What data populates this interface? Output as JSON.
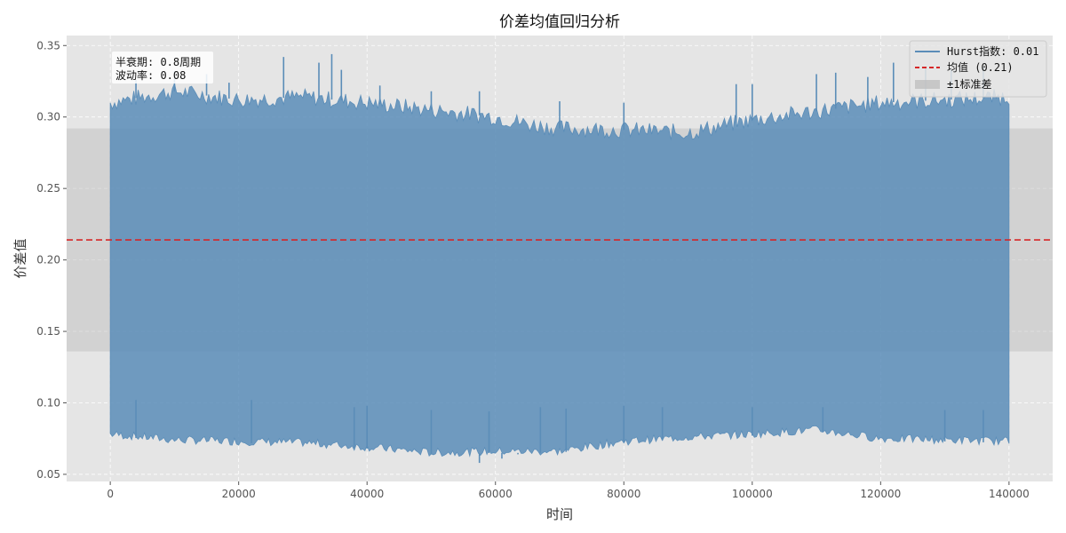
{
  "chart_data": {
    "type": "line",
    "title": "价差均值回归分析",
    "xlabel": "时间",
    "ylabel": "价差值",
    "xlim": [
      -6800,
      146800
    ],
    "ylim": [
      0.045,
      0.357
    ],
    "x_ticks": [
      0,
      20000,
      40000,
      60000,
      80000,
      100000,
      120000,
      140000
    ],
    "y_ticks": [
      0.05,
      0.1,
      0.15,
      0.2,
      0.25,
      0.3,
      0.35
    ],
    "y_tick_labels": [
      "0.05",
      "0.10",
      "0.15",
      "0.20",
      "0.25",
      "0.30",
      "0.35"
    ],
    "grid": true,
    "legend_position": "top-right",
    "colors": {
      "series": "#5b8db8",
      "mean": "#d62728",
      "band": "#bbbbbb",
      "background": "#e5e5e5"
    },
    "mean": 0.214,
    "std_band": [
      0.136,
      0.292
    ],
    "series": [
      {
        "name": "Hurst指数: 0.01",
        "x_range": [
          0,
          140000
        ],
        "upper_envelope": {
          "x": [
            0,
            10000,
            20000,
            30000,
            40000,
            50000,
            60000,
            65000,
            70000,
            80000,
            90000,
            100000,
            110000,
            120000,
            130000,
            140000
          ],
          "y": [
            0.31,
            0.318,
            0.312,
            0.314,
            0.31,
            0.305,
            0.3,
            0.295,
            0.292,
            0.291,
            0.289,
            0.298,
            0.304,
            0.31,
            0.312,
            0.314
          ]
        },
        "lower_envelope": {
          "x": [
            0,
            10000,
            20000,
            30000,
            40000,
            50000,
            60000,
            70000,
            80000,
            90000,
            100000,
            110000,
            120000,
            130000,
            140000
          ],
          "y": [
            0.077,
            0.073,
            0.072,
            0.071,
            0.068,
            0.064,
            0.065,
            0.065,
            0.072,
            0.075,
            0.077,
            0.08,
            0.074,
            0.073,
            0.072
          ]
        },
        "spikes_up": [
          {
            "x": 4000,
            "y": 0.326
          },
          {
            "x": 10000,
            "y": 0.332
          },
          {
            "x": 15000,
            "y": 0.33
          },
          {
            "x": 18500,
            "y": 0.324
          },
          {
            "x": 27000,
            "y": 0.342
          },
          {
            "x": 32500,
            "y": 0.338
          },
          {
            "x": 34500,
            "y": 0.344
          },
          {
            "x": 36000,
            "y": 0.333
          },
          {
            "x": 42000,
            "y": 0.322
          },
          {
            "x": 50000,
            "y": 0.318
          },
          {
            "x": 57500,
            "y": 0.318
          },
          {
            "x": 70000,
            "y": 0.311
          },
          {
            "x": 80000,
            "y": 0.31
          },
          {
            "x": 97500,
            "y": 0.323
          },
          {
            "x": 100000,
            "y": 0.323
          },
          {
            "x": 110000,
            "y": 0.33
          },
          {
            "x": 113000,
            "y": 0.331
          },
          {
            "x": 118000,
            "y": 0.328
          },
          {
            "x": 122000,
            "y": 0.338
          },
          {
            "x": 127000,
            "y": 0.334
          },
          {
            "x": 131000,
            "y": 0.333
          },
          {
            "x": 136000,
            "y": 0.335
          }
        ],
        "spikes_down": [
          {
            "x": 4000,
            "y": 0.102
          },
          {
            "x": 22000,
            "y": 0.102
          },
          {
            "x": 38000,
            "y": 0.097
          },
          {
            "x": 40000,
            "y": 0.098
          },
          {
            "x": 50000,
            "y": 0.095
          },
          {
            "x": 57500,
            "y": 0.058
          },
          {
            "x": 59000,
            "y": 0.094
          },
          {
            "x": 61000,
            "y": 0.061
          },
          {
            "x": 63500,
            "y": 0.064
          },
          {
            "x": 67000,
            "y": 0.097
          },
          {
            "x": 71000,
            "y": 0.096
          },
          {
            "x": 80000,
            "y": 0.098
          },
          {
            "x": 86000,
            "y": 0.097
          },
          {
            "x": 100000,
            "y": 0.097
          },
          {
            "x": 111000,
            "y": 0.097
          },
          {
            "x": 130000,
            "y": 0.095
          },
          {
            "x": 136000,
            "y": 0.095
          }
        ]
      }
    ],
    "legend": [
      {
        "label": "Hurst指数: 0.01",
        "kind": "line"
      },
      {
        "label": "均值 (0.21)",
        "kind": "dashed"
      },
      {
        "label": "±1标准差",
        "kind": "band"
      }
    ],
    "annotation": {
      "line1": "半衰期: 0.8周期",
      "line2": "波动率: 0.08"
    }
  }
}
